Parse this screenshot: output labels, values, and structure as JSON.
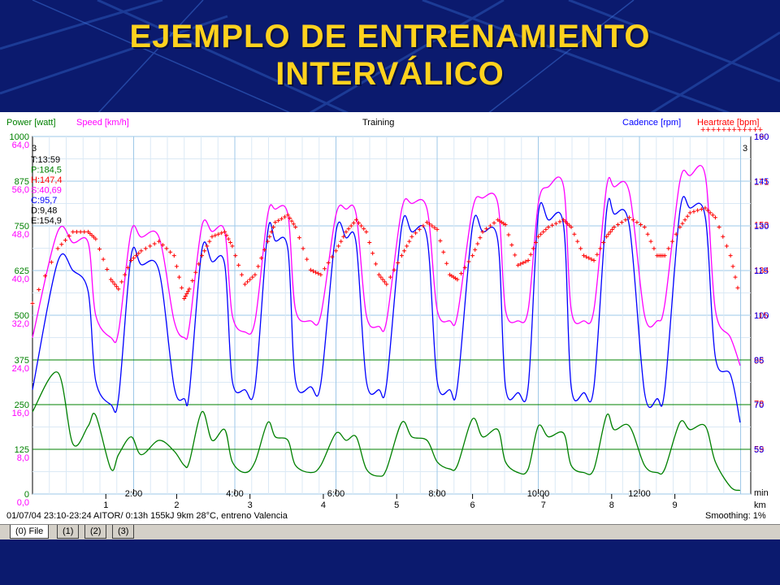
{
  "slide": {
    "title_line1": "EJEMPLO DE ENTRENAMIENTO",
    "title_line2": "INTERVÁLICO"
  },
  "colors": {
    "background": "#0b1a6e",
    "title": "#ffd21e",
    "power": "#008000",
    "speed": "#ff00ff",
    "cadence": "#0000ff",
    "heartrate": "#ff0000",
    "grid": "#9ec8e8"
  },
  "chart_data": {
    "type": "line",
    "title": "Training",
    "legend": {
      "power": "Power [watt]",
      "speed": "Speed [km/h]",
      "cadence": "Cadence [rpm]",
      "heartrate": "Heartrate [bpm]",
      "heartrate_marker": "++++++++++++"
    },
    "left_axes": {
      "power_ticks": [
        "1000",
        "875",
        "750",
        "625",
        "500",
        "375",
        "250",
        "125",
        "0"
      ],
      "speed_ticks": [
        "64,0",
        "56,0",
        "48,0",
        "40,0",
        "32,0",
        "24,0",
        "16,0",
        "8,0",
        "0,0"
      ]
    },
    "right_axes": {
      "heartrate_ticks": [
        "190",
        "171",
        "153",
        "134",
        "115",
        "96",
        "78",
        "59"
      ],
      "cadence_ticks": [
        "160",
        "145",
        "130",
        "115",
        "100",
        "85",
        "70",
        "55"
      ]
    },
    "power_ylim": [
      0,
      1000
    ],
    "speed_ylim": [
      0,
      64
    ],
    "cadence_ylim": [
      40,
      160
    ],
    "heartrate_ylim": [
      40,
      190
    ],
    "x_time_ticks": [
      "2:00",
      "4:00",
      "6:00",
      "8:00",
      "10:00",
      "12:00"
    ],
    "time_unit": "min",
    "x_km_ticks": [
      "1",
      "2",
      "3",
      "4",
      "5",
      "6",
      "7",
      "8",
      "9"
    ],
    "km_unit": "km",
    "marker_left": "3",
    "marker_right": "3",
    "stats": [
      "T:13:59",
      "P:184,5",
      "H:147,4",
      "S:40,69",
      "C:95,7",
      "D:9,48",
      "E:154,9"
    ],
    "reference_lines_speed": [
      24.0,
      16.0,
      8.0
    ],
    "reference_lines_power": [
      250
    ],
    "x_minutes": [
      0,
      0.5,
      0.8,
      1.1,
      1.25,
      1.55,
      1.7,
      1.95,
      2.15,
      2.5,
      2.8,
      3.0,
      3.1,
      3.35,
      3.55,
      3.8,
      3.95,
      4.2,
      4.4,
      4.65,
      4.8,
      5.05,
      5.2,
      5.5,
      5.7,
      6.0,
      6.2,
      6.4,
      6.6,
      6.85,
      7.0,
      7.3,
      7.5,
      7.8,
      8.0,
      8.25,
      8.4,
      8.7,
      8.9,
      9.2,
      9.35,
      9.6,
      9.8,
      10.0,
      10.2,
      10.5,
      10.65,
      10.9,
      11.1,
      11.35,
      11.5,
      11.8,
      12.1,
      12.35,
      12.5,
      12.8,
      13.0,
      13.3,
      13.5,
      13.8,
      13.99
    ],
    "speed_kmh": [
      28,
      47,
      45,
      45,
      32,
      28,
      29,
      47,
      46,
      46,
      31,
      28,
      30,
      48,
      47,
      47,
      32,
      29,
      31,
      50,
      51,
      50,
      33,
      31,
      32,
      50,
      51,
      50,
      32,
      30,
      31,
      51,
      52,
      51,
      33,
      31,
      32,
      51,
      53,
      52,
      33,
      31,
      33,
      52,
      55,
      55,
      33,
      31,
      33,
      55,
      55,
      54,
      32,
      31,
      34,
      56,
      57,
      57,
      33,
      28,
      23
    ],
    "cadence_rpm": [
      75,
      118,
      115,
      108,
      78,
      70,
      72,
      120,
      117,
      115,
      76,
      72,
      74,
      122,
      118,
      117,
      78,
      75,
      76,
      128,
      125,
      122,
      78,
      76,
      77,
      128,
      126,
      124,
      78,
      75,
      77,
      130,
      128,
      126,
      78,
      75,
      76,
      130,
      128,
      125,
      76,
      74,
      76,
      134,
      132,
      130,
      76,
      74,
      76,
      135,
      134,
      130,
      74,
      72,
      75,
      135,
      136,
      133,
      86,
      80,
      64
    ],
    "heartrate_bpm": [
      120,
      143,
      150,
      150,
      147,
      130,
      126,
      138,
      142,
      146,
      140,
      122,
      126,
      140,
      148,
      150,
      144,
      128,
      132,
      146,
      154,
      157,
      152,
      134,
      132,
      142,
      150,
      155,
      150,
      132,
      128,
      140,
      148,
      154,
      151,
      132,
      130,
      140,
      150,
      155,
      153,
      136,
      138,
      148,
      152,
      155,
      152,
      140,
      138,
      148,
      152,
      156,
      152,
      140,
      140,
      152,
      158,
      160,
      156,
      140,
      122
    ],
    "power_w": [
      230,
      340,
      140,
      190,
      220,
      70,
      110,
      160,
      110,
      150,
      120,
      80,
      90,
      230,
      150,
      180,
      90,
      60,
      90,
      200,
      160,
      150,
      80,
      60,
      80,
      170,
      150,
      160,
      70,
      50,
      70,
      200,
      160,
      150,
      90,
      70,
      80,
      210,
      160,
      180,
      90,
      60,
      70,
      190,
      160,
      170,
      80,
      60,
      70,
      220,
      180,
      190,
      80,
      60,
      70,
      200,
      180,
      190,
      90,
      20,
      10
    ]
  },
  "status": {
    "info": "01/07/04 23:10-23:24 AITOR/ 0:13h 155kJ 9km 28°C, entreno Valencia",
    "smoothing": "Smoothing: 1%"
  },
  "tabs": [
    "(0) File",
    "(1)",
    "(2)",
    "(3)"
  ]
}
